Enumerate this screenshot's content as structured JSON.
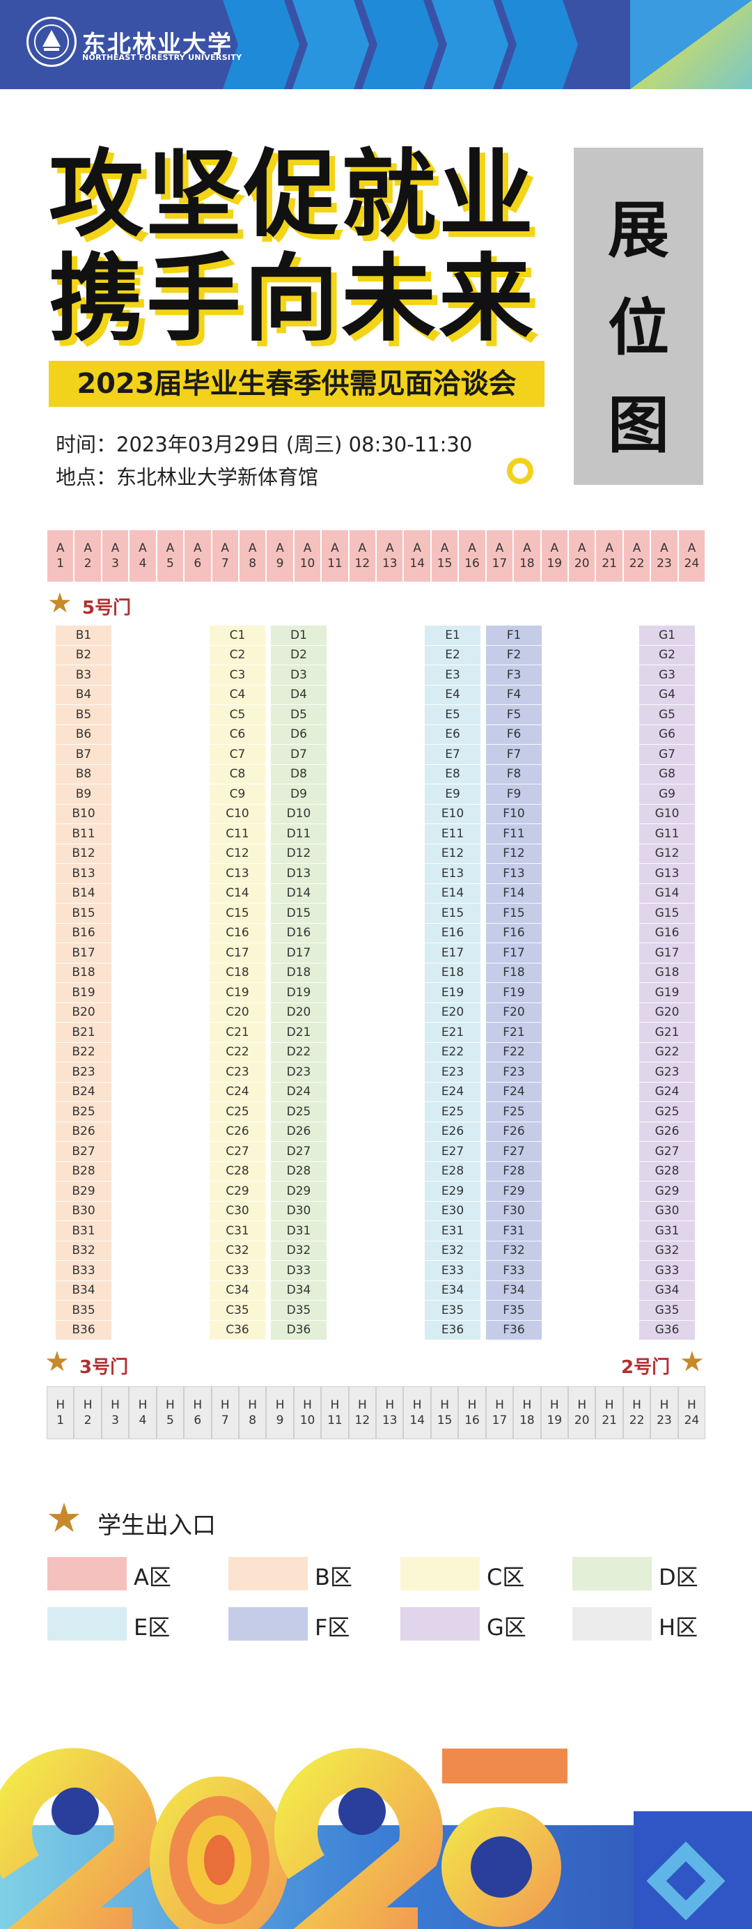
{
  "header": {
    "university_name": "东北林业大学",
    "university_name_en": "NORTHEAST FORESTRY UNIVERSITY"
  },
  "title": {
    "line1": "攻坚促就业",
    "line2": "携手向未来",
    "subtitle": "2023届毕业生春季供需见面洽谈会",
    "side_label": [
      "展",
      "位",
      "图"
    ]
  },
  "info": {
    "time": "时间：2023年03月29日 (周三) 08:30-11:30",
    "place": "地点：东北林业大学新体育馆"
  },
  "gates": {
    "gate5": "5号门",
    "gate3": "3号门",
    "gate2": "2号门"
  },
  "row_a": {
    "letter": "A",
    "numbers": [
      "1",
      "2",
      "3",
      "4",
      "5",
      "6",
      "7",
      "8",
      "9",
      "10",
      "11",
      "12",
      "13",
      "14",
      "15",
      "16",
      "17",
      "18",
      "19",
      "20",
      "21",
      "22",
      "23",
      "24"
    ]
  },
  "row_h": {
    "letter": "H",
    "numbers": [
      "1",
      "2",
      "3",
      "4",
      "5",
      "6",
      "7",
      "8",
      "9",
      "10",
      "11",
      "12",
      "13",
      "14",
      "15",
      "16",
      "17",
      "18",
      "19",
      "20",
      "21",
      "22",
      "23",
      "24"
    ]
  },
  "columns": [
    {
      "letter": "B",
      "color": "#fbe3d0",
      "count": 36
    },
    {
      "letter": "C",
      "color": "#fbf7d4",
      "count": 36
    },
    {
      "letter": "D",
      "color": "#e3efd6",
      "count": 36
    },
    {
      "letter": "E",
      "color": "#d8edf3",
      "count": 36
    },
    {
      "letter": "F",
      "color": "#c4cce8",
      "count": 36
    },
    {
      "letter": "G",
      "color": "#e0d5eb",
      "count": 36
    }
  ],
  "legend": {
    "entrance": "学生出入口",
    "items": [
      {
        "label": "A区",
        "color": "#f5c1bf"
      },
      {
        "label": "B区",
        "color": "#fbe3d0"
      },
      {
        "label": "C区",
        "color": "#fbf7d4"
      },
      {
        "label": "D区",
        "color": "#e3efd6"
      },
      {
        "label": "E区",
        "color": "#d8edf3"
      },
      {
        "label": "F区",
        "color": "#c4cce8"
      },
      {
        "label": "G区",
        "color": "#e0d5eb"
      },
      {
        "label": "H区",
        "color": "#ececec"
      }
    ]
  },
  "icons": {
    "star": "star-icon",
    "logo": "university-seal-icon"
  }
}
